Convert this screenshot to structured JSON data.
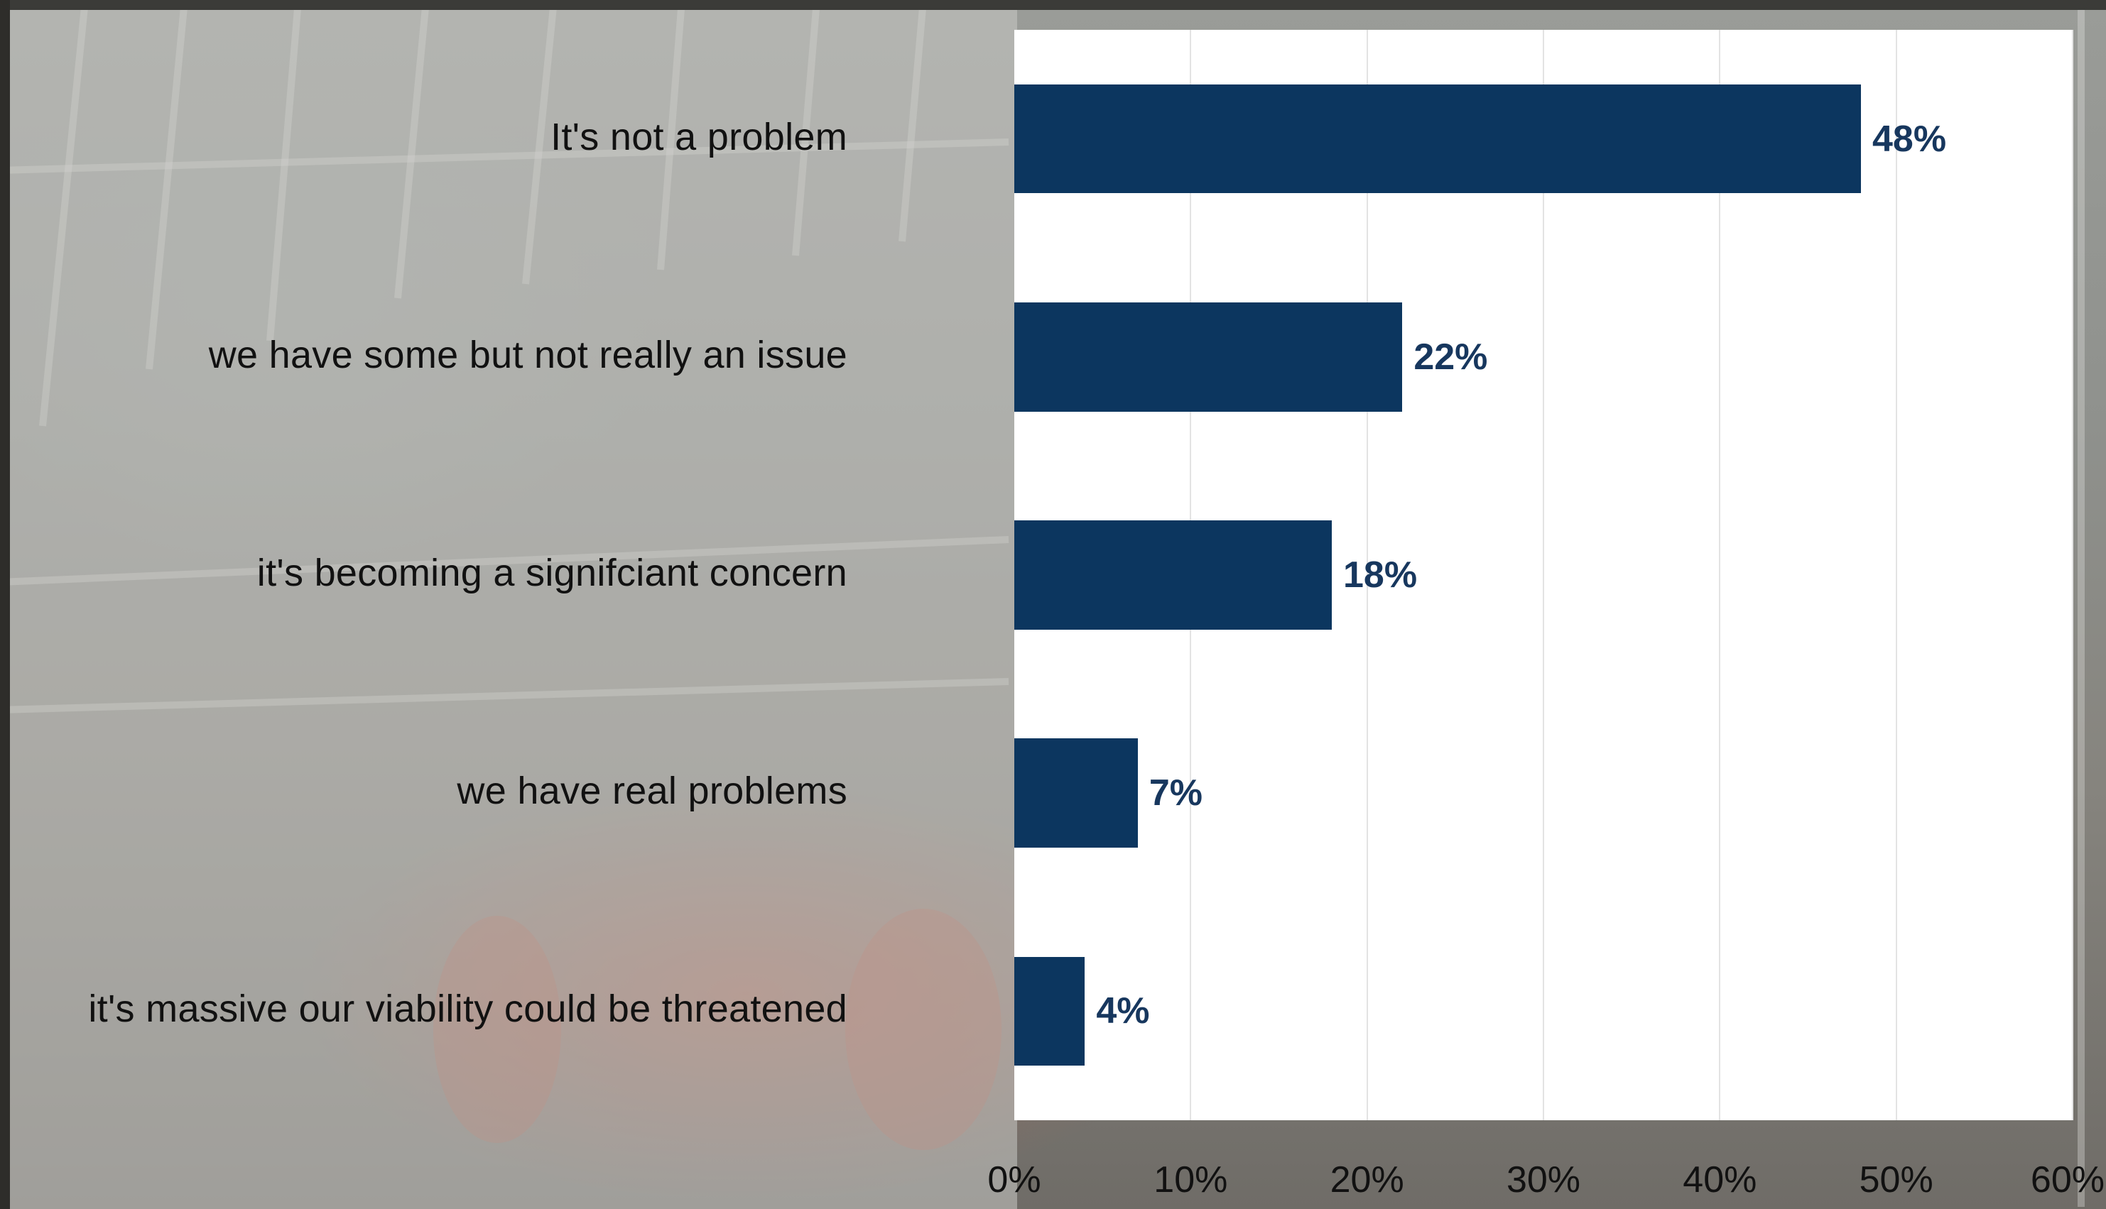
{
  "chart_data": {
    "type": "bar",
    "orientation": "horizontal",
    "categories": [
      "It's not a problem",
      "we have some but not really an issue",
      "it's becoming a signifciant concern",
      "we have real problems",
      "it's massive our viability could be threatened"
    ],
    "values": [
      48,
      22,
      18,
      7,
      4
    ],
    "value_labels": [
      "48%",
      "22%",
      "18%",
      "7%",
      "4%"
    ],
    "xlim": [
      0,
      60
    ],
    "x_ticks": [
      "0%",
      "10%",
      "20%",
      "30%",
      "40%",
      "50%",
      "60%"
    ],
    "x_tick_values": [
      0,
      10,
      20,
      30,
      40,
      50,
      60
    ],
    "bar_color": "#0c365f",
    "value_label_color": "#17375e",
    "grid": true
  }
}
